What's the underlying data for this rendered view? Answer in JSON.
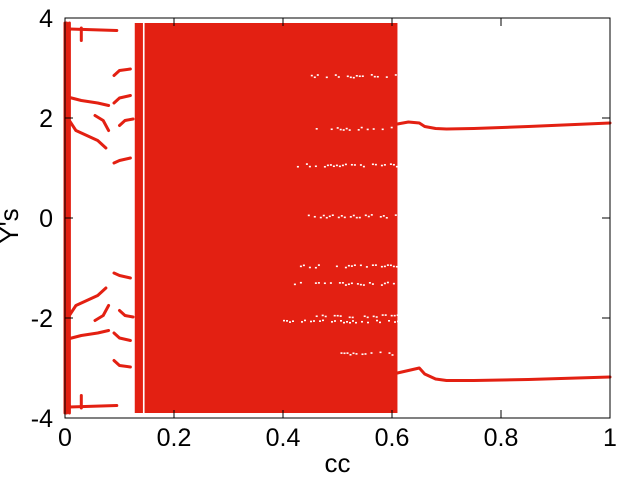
{
  "chart_data": {
    "type": "scatter",
    "title": "",
    "xlabel": "cc",
    "ylabel": "Y's",
    "xlim": [
      0,
      1
    ],
    "ylim": [
      -4,
      4
    ],
    "x_ticks": [
      0,
      0.2,
      0.4,
      0.6,
      0.8,
      1
    ],
    "x_tick_labels": [
      "0",
      "0.2",
      "0.4",
      "0.6",
      "0.8",
      "1"
    ],
    "y_ticks": [
      -4,
      -2,
      0,
      2,
      4
    ],
    "y_tick_labels": [
      "-4",
      "-2",
      "0",
      "2",
      "4"
    ],
    "grid": false,
    "color": "#e32012",
    "description_kind": "bifurcation diagram",
    "chaotic_band": {
      "x_ranges": [
        [
          0.128,
          0.143
        ],
        [
          0.146,
          0.61
        ]
      ],
      "y_range": [
        -3.9,
        3.9
      ]
    },
    "branches": [
      {
        "x": [
          0.0,
          0.008
        ],
        "y": [
          3.75,
          3.75
        ]
      },
      {
        "x": [
          0.008,
          0.095
        ],
        "y": [
          3.78,
          3.75
        ]
      },
      {
        "x": [
          0.0,
          0.008
        ],
        "y": [
          -3.75,
          -3.75
        ]
      },
      {
        "x": [
          0.008,
          0.095
        ],
        "y": [
          -3.78,
          -3.75
        ]
      },
      {
        "x": [
          0.0,
          0.0,
          0.0
        ],
        "y": [
          -3.9,
          0.0,
          3.9
        ]
      },
      {
        "x": [
          0.003,
          0.003
        ],
        "y": [
          -3.9,
          3.9
        ]
      },
      {
        "x": [
          0.008,
          0.008
        ],
        "y": [
          -3.9,
          3.9
        ]
      },
      {
        "x": [
          0.03,
          0.03
        ],
        "y": [
          3.55,
          3.8
        ]
      },
      {
        "x": [
          0.03,
          0.03
        ],
        "y": [
          -3.55,
          -3.8
        ]
      },
      {
        "x": [
          0.005,
          0.03,
          0.06,
          0.08
        ],
        "y": [
          2.42,
          2.35,
          2.3,
          2.25
        ]
      },
      {
        "x": [
          0.005,
          0.03,
          0.06,
          0.08
        ],
        "y": [
          -2.42,
          -2.35,
          -2.3,
          -2.25
        ]
      },
      {
        "x": [
          0.005,
          0.02,
          0.04,
          0.06,
          0.075
        ],
        "y": [
          2.0,
          1.75,
          1.65,
          1.55,
          1.4
        ]
      },
      {
        "x": [
          0.005,
          0.02,
          0.04,
          0.06,
          0.075
        ],
        "y": [
          -2.0,
          -1.75,
          -1.65,
          -1.55,
          -1.4
        ]
      },
      {
        "x": [
          0.055,
          0.07,
          0.08
        ],
        "y": [
          2.05,
          1.95,
          1.75
        ]
      },
      {
        "x": [
          0.055,
          0.07,
          0.08
        ],
        "y": [
          -2.05,
          -1.95,
          -1.75
        ]
      },
      {
        "x": [
          0.09,
          0.1,
          0.12
        ],
        "y": [
          2.85,
          2.95,
          2.98
        ]
      },
      {
        "x": [
          0.09,
          0.1,
          0.12
        ],
        "y": [
          -2.85,
          -2.95,
          -2.98
        ]
      },
      {
        "x": [
          0.09,
          0.1,
          0.12
        ],
        "y": [
          2.3,
          2.4,
          2.45
        ]
      },
      {
        "x": [
          0.09,
          0.1,
          0.12
        ],
        "y": [
          -2.3,
          -2.4,
          -2.45
        ]
      },
      {
        "x": [
          0.09,
          0.1,
          0.12
        ],
        "y": [
          1.1,
          1.15,
          1.2
        ]
      },
      {
        "x": [
          0.09,
          0.1,
          0.12
        ],
        "y": [
          -1.1,
          -1.15,
          -1.2
        ]
      },
      {
        "x": [
          0.1,
          0.11,
          0.125
        ],
        "y": [
          1.85,
          1.95,
          1.98
        ]
      },
      {
        "x": [
          0.1,
          0.11,
          0.125
        ],
        "y": [
          -1.85,
          -1.95,
          -1.98
        ]
      },
      {
        "x": [
          0.61,
          0.63,
          0.65,
          0.66,
          0.68,
          0.7,
          0.75,
          0.85,
          1.0
        ],
        "y": [
          1.88,
          1.92,
          1.9,
          1.83,
          1.79,
          1.78,
          1.79,
          1.83,
          1.9
        ]
      },
      {
        "x": [
          0.61,
          0.63,
          0.65,
          0.66,
          0.68,
          0.7,
          0.75,
          0.85,
          1.0
        ],
        "y": [
          -3.1,
          -3.05,
          -3.0,
          -3.12,
          -3.22,
          -3.25,
          -3.25,
          -3.23,
          -3.18
        ]
      }
    ],
    "gap_streaks": [
      {
        "x_range": [
          0.46,
          0.61
        ],
        "y": 1.8
      },
      {
        "x_range": [
          0.42,
          0.61
        ],
        "y": 1.07
      },
      {
        "x_range": [
          0.44,
          0.61
        ],
        "y": 0.05
      },
      {
        "x_range": [
          0.42,
          0.61
        ],
        "y": -0.95
      },
      {
        "x_range": [
          0.42,
          0.61
        ],
        "y": -1.3
      },
      {
        "x_range": [
          0.46,
          0.61
        ],
        "y": -1.95
      },
      {
        "x_range": [
          0.4,
          0.61
        ],
        "y": -2.05
      },
      {
        "x_range": [
          0.5,
          0.61
        ],
        "y": -2.7
      },
      {
        "x_range": [
          0.44,
          0.61
        ],
        "y": 2.85
      }
    ]
  }
}
